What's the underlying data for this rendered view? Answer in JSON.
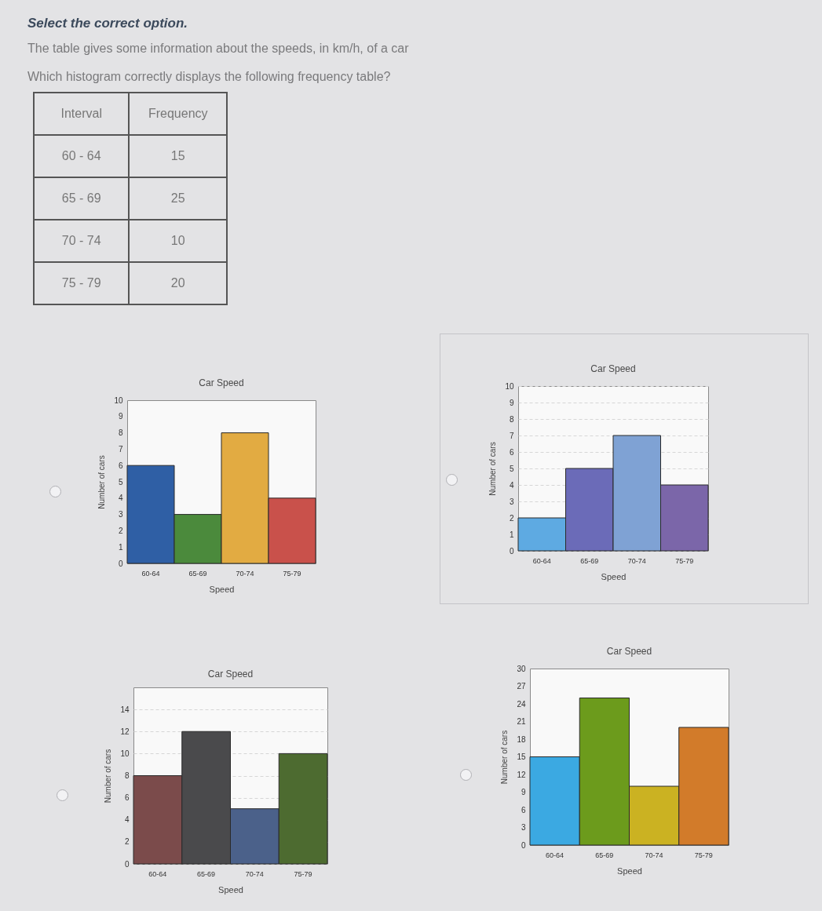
{
  "chart_data": [
    {
      "type": "other",
      "title": "Select the correct option.",
      "annotations": [
        "The table gives some information about the speeds, in km/h, of a car",
        "Which histogram correctly displays the following frequency table?"
      ],
      "xlabel": "Interval",
      "ylabel": "Frequency",
      "categories": [
        "60 - 64",
        "65 - 69",
        "70 - 74",
        "75 - 79"
      ],
      "values": [
        15,
        25,
        10,
        20
      ],
      "data_labels": true
    },
    {
      "type": "bar",
      "title": "Car Speed",
      "xlabel": "Speed",
      "ylabel": "Number of cars",
      "categories": [
        "60-64",
        "65-69",
        "70-74",
        "75-79"
      ],
      "values": [
        6,
        3,
        8,
        4
      ],
      "colors": [
        "#2f5fa5",
        "#4b8a3c",
        "#e2ab42",
        "#c9514b"
      ],
      "ylim": [
        0,
        10
      ],
      "yticks": [
        0,
        1,
        2,
        3,
        4,
        5,
        6,
        7,
        8,
        9,
        10
      ]
    },
    {
      "type": "bar",
      "title": "Car Speed",
      "xlabel": "Speed",
      "ylabel": "Number of cars",
      "categories": [
        "60-64",
        "65-69",
        "70-74",
        "75-79"
      ],
      "values": [
        2,
        5,
        7,
        4
      ],
      "colors": [
        "#5eaae2",
        "#6b6bb8",
        "#7fa2d4",
        "#7b66a9"
      ],
      "ylim": [
        0,
        10
      ],
      "yticks": [
        0,
        1,
        2,
        3,
        4,
        5,
        6,
        7,
        8,
        9,
        10
      ],
      "grid": true
    },
    {
      "type": "bar",
      "title": "Car Speed",
      "xlabel": "Speed",
      "ylabel": "Number of cars",
      "categories": [
        "60-64",
        "65-69",
        "70-74",
        "75-79"
      ],
      "values": [
        8,
        12,
        5,
        10
      ],
      "colors": [
        "#7b4b4b",
        "#4a4a4c",
        "#4b618a",
        "#4d6b30"
      ],
      "ylim": [
        0,
        16
      ],
      "yticks": [
        0,
        2,
        4,
        6,
        8,
        10,
        12,
        14
      ],
      "grid": true
    },
    {
      "type": "bar",
      "title": "Car Speed",
      "xlabel": "Speed",
      "ylabel": "Number of cars",
      "categories": [
        "60-64",
        "65-69",
        "70-74",
        "75-79"
      ],
      "values": [
        15,
        25,
        10,
        20
      ],
      "colors": [
        "#3ba9e2",
        "#6c9b1c",
        "#cbb222",
        "#d27b2a"
      ],
      "ylim": [
        0,
        30
      ],
      "yticks": [
        0,
        3,
        6,
        9,
        12,
        15,
        18,
        21,
        24,
        27,
        30
      ]
    }
  ]
}
